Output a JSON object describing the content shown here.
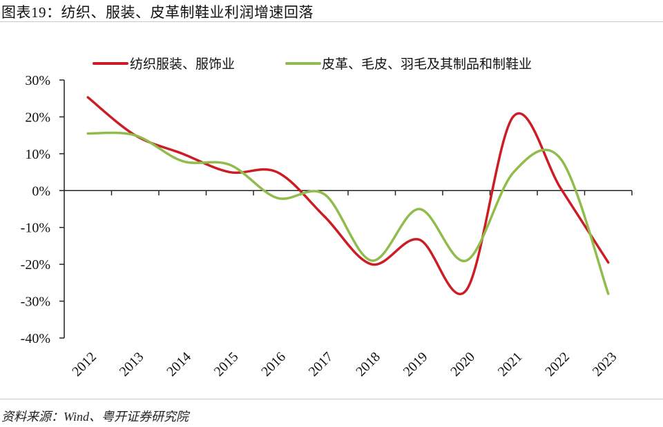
{
  "header": {
    "title": "图表19：纺织、服装、皮革制鞋业利润增速回落"
  },
  "footer": {
    "source": "资料来源：Wind、粤开证券研究院"
  },
  "colors": {
    "series_red": "#cc1d24",
    "series_green": "#8fbc4b",
    "axis": "#222222",
    "rule": "#c8c8c8"
  },
  "chart_data": {
    "type": "line",
    "title": "纺织、服装、皮革制鞋业利润增速回落",
    "xlabel": "",
    "ylabel": "",
    "smooth": true,
    "categories": [
      "2012",
      "2013",
      "2014",
      "2015",
      "2016",
      "2017",
      "2018",
      "2019",
      "2020",
      "2021",
      "2022",
      "2023"
    ],
    "series": [
      {
        "name": "纺织服装、服饰业",
        "color": "#cc1d24",
        "values": [
          25.3,
          15.0,
          10.0,
          5.0,
          5.0,
          -7.0,
          -20.0,
          -13.3,
          -27.0,
          20.2,
          0.5,
          -19.5
        ]
      },
      {
        "name": "皮革、毛皮、羽毛及其制品和制鞋业",
        "color": "#8fbc4b",
        "values": [
          15.5,
          15.0,
          8.0,
          7.0,
          -2.0,
          -1.0,
          -19.0,
          -5.0,
          -19.0,
          5.0,
          8.5,
          -28.0
        ]
      }
    ],
    "ylim": [
      -40,
      30
    ],
    "yticks": [
      30,
      20,
      10,
      0,
      -10,
      -20,
      -30,
      -40
    ],
    "ytick_labels": [
      "30%",
      "20%",
      "10%",
      "0%",
      "-10%",
      "-20%",
      "-30%",
      "-40%"
    ],
    "grid": false,
    "legend_position": "top",
    "x_tick_rotation": -45
  }
}
